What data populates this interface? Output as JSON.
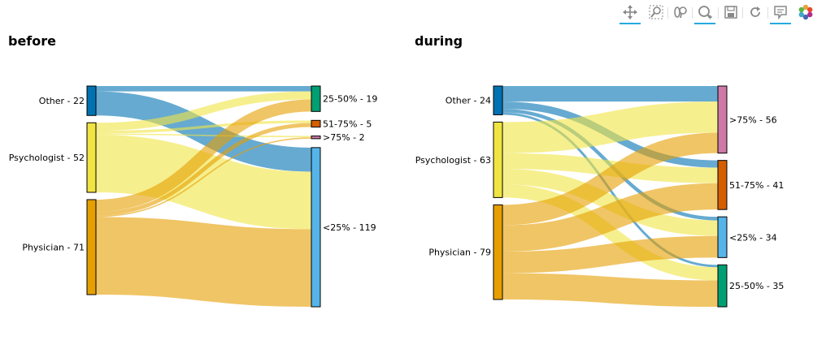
{
  "toolbar": {
    "tools": [
      {
        "name": "pan-tool",
        "icon": "pan-icon",
        "active": true
      },
      {
        "name": "box-zoom-tool",
        "icon": "box-zoom-icon",
        "active": false
      },
      {
        "name": "wheel-zoom-tool",
        "icon": "wheel-zoom-icon",
        "active": false
      },
      {
        "name": "zoom-in-tool",
        "icon": "zoom-in-icon",
        "active": true
      },
      {
        "name": "save-tool",
        "icon": "save-icon",
        "active": false
      },
      {
        "name": "reset-tool",
        "icon": "reset-icon",
        "active": false
      },
      {
        "name": "hover-tool",
        "icon": "hover-icon",
        "active": true
      },
      {
        "name": "bokeh-logo",
        "icon": "bokeh-logo-icon",
        "active": false
      }
    ]
  },
  "colors": {
    "Other": "#0072b2",
    "Psychologist": "#f0e442",
    "Physician": "#e69f00",
    ">75%": "#cc79a7",
    "51-75%": "#d55e00",
    "25-50%": "#009e73",
    "<25%": "#56b4e9"
  },
  "chart_data": [
    {
      "type": "sankey",
      "title": "before",
      "sources": [
        {
          "name": "Other",
          "label": "Other - 22",
          "value": 22
        },
        {
          "name": "Psychologist",
          "label": "Psychologist - 52",
          "value": 52
        },
        {
          "name": "Physician",
          "label": "Physician - 71",
          "value": 71
        }
      ],
      "targets": [
        {
          "name": "25-50%",
          "label": "25-50% - 19",
          "value": 19
        },
        {
          "name": "51-75%",
          "label": "51-75% - 5",
          "value": 5
        },
        {
          "name": ">75%",
          "label": ">75% - 2",
          "value": 2
        },
        {
          "name": "<25%",
          "label": "<25% - 119",
          "value": 119
        }
      ],
      "links": [
        {
          "source": "Other",
          "target": "25-50%",
          "value": 4
        },
        {
          "source": "Other",
          "target": "<25%",
          "value": 18
        },
        {
          "source": "Psychologist",
          "target": "25-50%",
          "value": 6
        },
        {
          "source": "Psychologist",
          "target": "51-75%",
          "value": 2
        },
        {
          "source": "Psychologist",
          "target": ">75%",
          "value": 1
        },
        {
          "source": "Psychologist",
          "target": "<25%",
          "value": 43
        },
        {
          "source": "Physician",
          "target": "25-50%",
          "value": 9
        },
        {
          "source": "Physician",
          "target": "51-75%",
          "value": 3
        },
        {
          "source": "Physician",
          "target": ">75%",
          "value": 1
        },
        {
          "source": "Physician",
          "target": "<25%",
          "value": 58
        }
      ]
    },
    {
      "type": "sankey",
      "title": "during",
      "sources": [
        {
          "name": "Other",
          "label": "Other - 24",
          "value": 24
        },
        {
          "name": "Psychologist",
          "label": "Psychologist - 63",
          "value": 63
        },
        {
          "name": "Physician",
          "label": "Physician - 79",
          "value": 79
        }
      ],
      "targets": [
        {
          "name": ">75%",
          "label": ">75% - 56",
          "value": 56
        },
        {
          "name": "51-75%",
          "label": "51-75% - 41",
          "value": 41
        },
        {
          "name": "<25%",
          "label": "<25% - 34",
          "value": 34
        },
        {
          "name": "25-50%",
          "label": "25-50% - 35",
          "value": 35
        }
      ],
      "links": [
        {
          "source": "Other",
          "target": ">75%",
          "value": 13
        },
        {
          "source": "Other",
          "target": "51-75%",
          "value": 6
        },
        {
          "source": "Other",
          "target": "<25%",
          "value": 3
        },
        {
          "source": "Other",
          "target": "25-50%",
          "value": 2
        },
        {
          "source": "Psychologist",
          "target": ">75%",
          "value": 26
        },
        {
          "source": "Psychologist",
          "target": "51-75%",
          "value": 13
        },
        {
          "source": "Psychologist",
          "target": "<25%",
          "value": 13
        },
        {
          "source": "Psychologist",
          "target": "25-50%",
          "value": 11
        },
        {
          "source": "Physician",
          "target": ">75%",
          "value": 17
        },
        {
          "source": "Physician",
          "target": "51-75%",
          "value": 22
        },
        {
          "source": "Physician",
          "target": "<25%",
          "value": 18
        },
        {
          "source": "Physician",
          "target": "25-50%",
          "value": 22
        }
      ]
    }
  ]
}
